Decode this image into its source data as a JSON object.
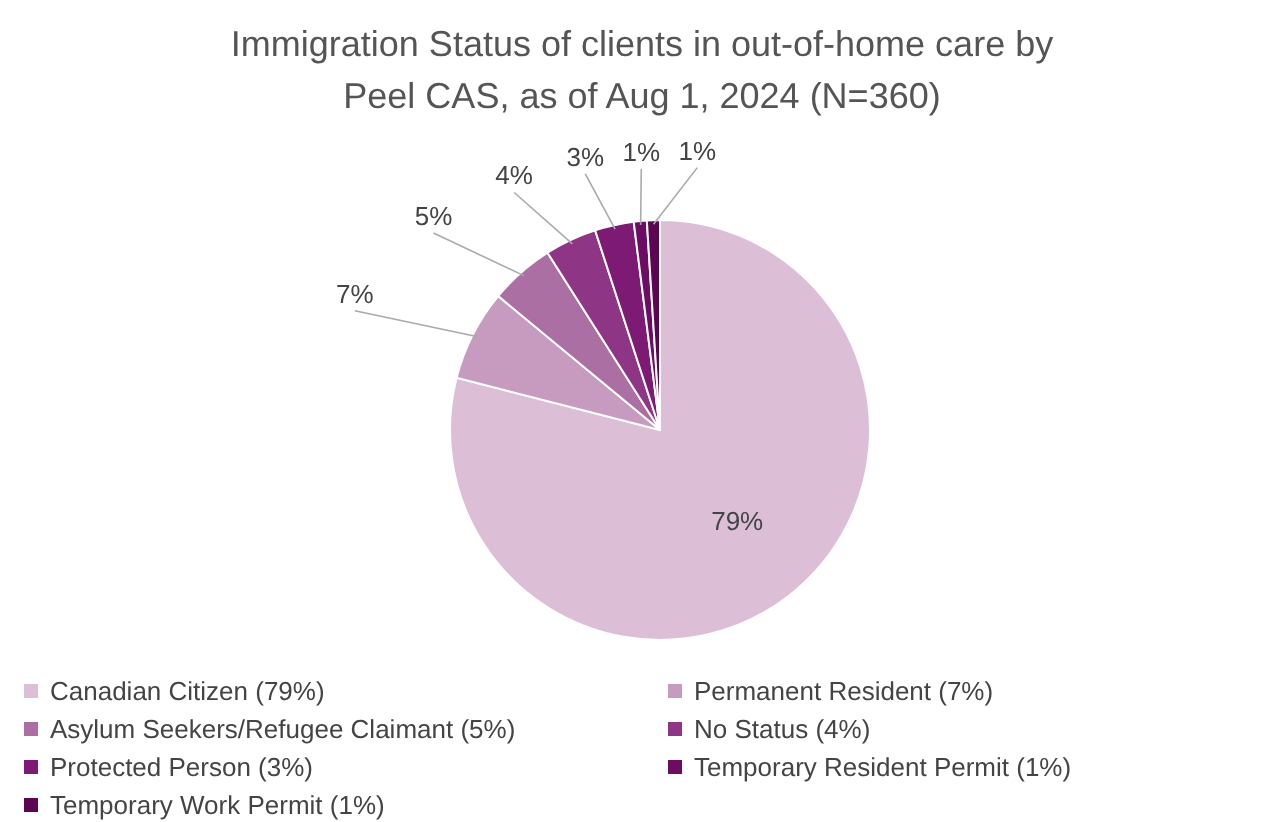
{
  "chart_data": {
    "type": "pie",
    "title": "Immigration Status of clients in out-of-home care by Peel CAS, as of Aug 1, 2024 (N=360)",
    "categories": [
      "Canadian Citizen (79%)",
      "Permanent Resident (7%)",
      "Asylum Seekers/Refugee Claimant (5%)",
      "No Status (4%)",
      "Protected Person (3%)",
      "Temporary Resident Permit (1%)",
      "Temporary Work Permit (1%)"
    ],
    "values": [
      79,
      7,
      5,
      4,
      3,
      1,
      1
    ],
    "value_labels": [
      "79%",
      "7%",
      "5%",
      "4%",
      "3%",
      "1%",
      "1%"
    ],
    "colors": [
      "#dcbfd7",
      "#c79ac0",
      "#ac6fa4",
      "#8e3586",
      "#7d1a73",
      "#6c0d63",
      "#5c0553"
    ],
    "legend": "bottom"
  }
}
